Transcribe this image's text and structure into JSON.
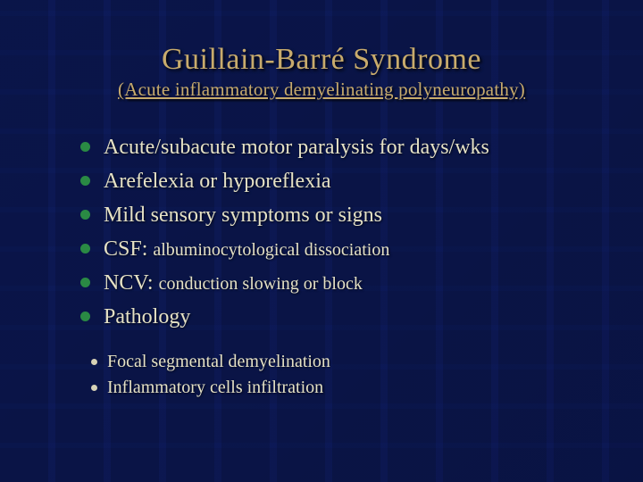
{
  "colors": {
    "title": "#c8ab6c",
    "body_text": "#e5e1c5",
    "main_bullet": "#2a8a44",
    "sub_bullet": "#d7d2b6"
  },
  "title": "Guillain-Barré Syndrome",
  "subtitle": "(Acute inflammatory demyelinating polyneuropathy)",
  "bullets": [
    {
      "text": "Acute/subacute motor paralysis for days/wks"
    },
    {
      "text": "Arefelexia or hyporeflexia"
    },
    {
      "text": "Mild sensory symptoms or signs"
    },
    {
      "prefix": "CSF: ",
      "small": "albuminocytological dissociation"
    },
    {
      "prefix": "NCV: ",
      "small": "conduction slowing or block"
    },
    {
      "text": "Pathology"
    }
  ],
  "sub_bullets": [
    "Focal segmental demyelination",
    "Inflammatory cells infiltration"
  ]
}
